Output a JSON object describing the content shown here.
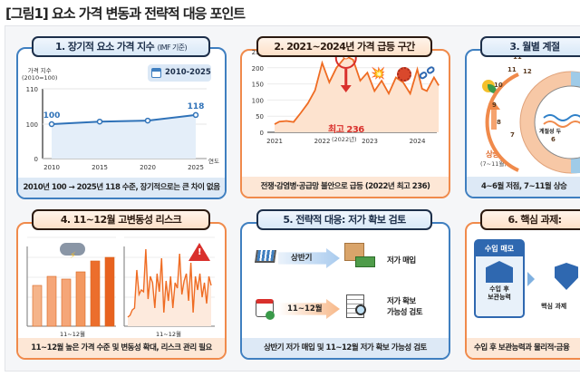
{
  "title": "[그림1] 요소 가격 변동과 전략적 대응 포인트",
  "colors": {
    "blue": "#3f7fc0",
    "orange": "#f08a4b",
    "line_orange": "#ef6c23",
    "red": "#d9302c"
  },
  "card1": {
    "heading": "1. 장기적 요소 가격 지수",
    "heading_note": "(IMF 기준)",
    "ylabel_line1": "가격 지수",
    "ylabel_line2": "(2010=100)",
    "period_badge": "2010-2025",
    "calendar_icon": "calendar-icon",
    "xlabel": "연도",
    "footer": "2010년 100 → 2025년 118 수준, 장기적으로는 큰 차이 없음"
  },
  "card2": {
    "heading": "2. 2021~2024년 가격 급등 구간",
    "peak_label": "최고 236",
    "peak_year": "(2022년)",
    "icons": [
      "explosion-icon",
      "virus-icon",
      "broken-chain-icon"
    ],
    "footer": "전쟁·감염병·공급망 불안으로 급등 (2022년 최고 236)"
  },
  "card3": {
    "heading": "3. 월별 계절",
    "rise_label": "상승",
    "rise_months": "(7~11월)",
    "clock_center": "계절성 두",
    "months": [
      "11",
      "12",
      "10",
      "9",
      "8",
      "7",
      "6",
      "11"
    ],
    "footer": "4~6월 저점, 7~11월 상승"
  },
  "card4": {
    "heading": "4. 11~12월 고변동성 리스크",
    "left_xlabel": "11~12월",
    "right_xlabel": "11~12월",
    "footer": "11~12월 높은 가격 수준 및 변동성 확대, 리스크 관리 필요"
  },
  "card5": {
    "heading": "5. 전략적 대응: 저가 확보 검토",
    "row1_arrow": "상반기",
    "row1_result": "저가 매입",
    "row2_arrow": "11~12월",
    "row2_result_line1": "저가 확보",
    "row2_result_line2": "가능성 검토",
    "footer": "상반기 저가 매입 및 11~12월 저가 확보 가능성 검토"
  },
  "card6": {
    "heading": "6. 핵심 과제: ",
    "memo_title": "수입 매모",
    "memo_line1": "수입 후",
    "memo_line2": "보관능력",
    "shield_label": "핵심 과제 ",
    "footer": "수입 후 보관능력과 물리적·금융"
  },
  "chart_data": [
    {
      "type": "line",
      "title": "1. 장기적 요소 가격 지수",
      "ylabel": "가격 지수 (2010=100)",
      "xlabel": "연도",
      "x": [
        2010,
        2015,
        2020,
        2025
      ],
      "values": [
        100,
        105,
        107,
        118
      ],
      "point_labels": {
        "2010": "100",
        "2025": "118"
      },
      "yticks": [
        0,
        100,
        110
      ],
      "xticks": [
        2010,
        2015,
        2020,
        2025
      ],
      "ylim": [
        0,
        110
      ],
      "area_fill": true
    },
    {
      "type": "area",
      "title": "2. 2021~2024년 가격 급등 구간",
      "x": [
        2021.0,
        2021.1,
        2021.25,
        2021.4,
        2021.55,
        2021.7,
        2021.85,
        2022.0,
        2022.15,
        2022.3,
        2022.5,
        2022.65,
        2022.8,
        2022.95,
        2023.1,
        2023.25,
        2023.4,
        2023.55,
        2023.7,
        2023.85,
        2024.0,
        2024.1,
        2024.2,
        2024.35,
        2024.45
      ],
      "values": [
        25,
        33,
        35,
        32,
        60,
        90,
        130,
        215,
        155,
        200,
        236,
        225,
        160,
        185,
        128,
        160,
        120,
        170,
        155,
        120,
        195,
        135,
        128,
        170,
        145
      ],
      "yticks": [
        0,
        50,
        100,
        150,
        200,
        250
      ],
      "xticks": [
        2021,
        2022,
        2023,
        2024
      ],
      "ylim": [
        0,
        250
      ],
      "peak": {
        "x": 2022.5,
        "value": 236
      }
    },
    {
      "type": "bar",
      "title": "4. 11~12월 고변동성 리스크",
      "xlabel": "11~12월",
      "values": [
        45,
        55,
        52,
        60,
        72,
        76
      ]
    },
    {
      "type": "line",
      "xlabel": "11~12월",
      "values": [
        10,
        12,
        18,
        20,
        62,
        35,
        40,
        38,
        85,
        30,
        55,
        48,
        20,
        58,
        38,
        75,
        15,
        50,
        28,
        55,
        20,
        48,
        42,
        80,
        35,
        50,
        58,
        28,
        70,
        15,
        55,
        40,
        58,
        32,
        48,
        25,
        55,
        45
      ]
    }
  ]
}
